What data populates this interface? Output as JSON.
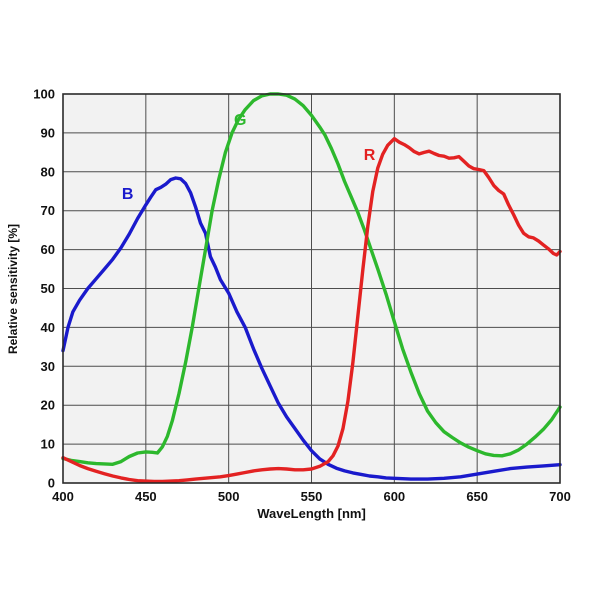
{
  "chart_data": {
    "type": "line",
    "title": "",
    "xlabel": "WaveLength [nm]",
    "ylabel": "Relative sensitivity [%]",
    "xlim": [
      400,
      700
    ],
    "ylim": [
      0,
      100
    ],
    "x_ticks": [
      400,
      450,
      500,
      550,
      600,
      650,
      700
    ],
    "y_ticks": [
      0,
      10,
      20,
      30,
      40,
      50,
      60,
      70,
      80,
      90,
      100
    ],
    "grid": true,
    "legend_position": "inline-curve-labels",
    "plot_background": "#f2f2f2",
    "grid_color": "#4d4d4d",
    "border_color": "#2a2a2a",
    "series": [
      {
        "name": "blue-channel",
        "label": "B",
        "color": "#1a1acc",
        "label_x": 439,
        "label_y": 73,
        "points": [
          [
            400,
            34
          ],
          [
            403,
            40
          ],
          [
            406,
            44
          ],
          [
            410,
            47
          ],
          [
            415,
            50
          ],
          [
            420,
            52.5
          ],
          [
            425,
            55
          ],
          [
            430,
            57.5
          ],
          [
            435,
            60.5
          ],
          [
            440,
            64
          ],
          [
            445,
            68
          ],
          [
            450,
            71.5
          ],
          [
            453,
            73.5
          ],
          [
            456,
            75.4
          ],
          [
            459,
            76
          ],
          [
            462,
            76.8
          ],
          [
            465,
            78
          ],
          [
            468,
            78.4
          ],
          [
            471,
            78.2
          ],
          [
            474,
            77
          ],
          [
            477,
            74.6
          ],
          [
            480,
            71
          ],
          [
            483,
            66.8
          ],
          [
            486,
            64.2
          ],
          [
            489,
            58.2
          ],
          [
            492,
            55.5
          ],
          [
            495,
            52.3
          ],
          [
            500,
            48.8
          ],
          [
            505,
            44
          ],
          [
            510,
            40
          ],
          [
            515,
            34.5
          ],
          [
            520,
            29.5
          ],
          [
            525,
            25
          ],
          [
            530,
            20.5
          ],
          [
            535,
            17
          ],
          [
            540,
            14
          ],
          [
            545,
            11
          ],
          [
            550,
            8.3
          ],
          [
            555,
            6.2
          ],
          [
            560,
            4.8
          ],
          [
            565,
            3.8
          ],
          [
            570,
            3.1
          ],
          [
            575,
            2.6
          ],
          [
            580,
            2.2
          ],
          [
            585,
            1.8
          ],
          [
            590,
            1.6
          ],
          [
            595,
            1.3
          ],
          [
            600,
            1.2
          ],
          [
            610,
            1.0
          ],
          [
            620,
            1.0
          ],
          [
            630,
            1.2
          ],
          [
            640,
            1.6
          ],
          [
            650,
            2.3
          ],
          [
            660,
            3.0
          ],
          [
            670,
            3.7
          ],
          [
            680,
            4.1
          ],
          [
            690,
            4.4
          ],
          [
            700,
            4.7
          ]
        ]
      },
      {
        "name": "green-channel",
        "label": "G",
        "color": "#2db82d",
        "label_x": 507,
        "label_y": 92,
        "points": [
          [
            400,
            6.3
          ],
          [
            405,
            5.8
          ],
          [
            410,
            5.5
          ],
          [
            415,
            5.2
          ],
          [
            420,
            5.0
          ],
          [
            425,
            4.9
          ],
          [
            430,
            4.8
          ],
          [
            435,
            5.5
          ],
          [
            440,
            6.8
          ],
          [
            445,
            7.7
          ],
          [
            450,
            8.0
          ],
          [
            454,
            7.9
          ],
          [
            457,
            7.7
          ],
          [
            460,
            9.3
          ],
          [
            463,
            12
          ],
          [
            466,
            16
          ],
          [
            470,
            23
          ],
          [
            474,
            31
          ],
          [
            478,
            40
          ],
          [
            482,
            50
          ],
          [
            486,
            60
          ],
          [
            490,
            70
          ],
          [
            494,
            78
          ],
          [
            498,
            85
          ],
          [
            502,
            90
          ],
          [
            506,
            93.5
          ],
          [
            510,
            96
          ],
          [
            515,
            98.3
          ],
          [
            520,
            99.5
          ],
          [
            525,
            100
          ],
          [
            530,
            100
          ],
          [
            535,
            99.7
          ],
          [
            540,
            98.7
          ],
          [
            545,
            97
          ],
          [
            550,
            94.5
          ],
          [
            555,
            91.5
          ],
          [
            558,
            89.5
          ],
          [
            562,
            86
          ],
          [
            566,
            82
          ],
          [
            570,
            77.5
          ],
          [
            574,
            73.5
          ],
          [
            578,
            69.5
          ],
          [
            582,
            65
          ],
          [
            586,
            60
          ],
          [
            590,
            55
          ],
          [
            595,
            48.5
          ],
          [
            600,
            41.5
          ],
          [
            605,
            34.5
          ],
          [
            610,
            28.5
          ],
          [
            615,
            23
          ],
          [
            620,
            18.5
          ],
          [
            625,
            15.5
          ],
          [
            630,
            13.2
          ],
          [
            635,
            11.7
          ],
          [
            640,
            10.3
          ],
          [
            645,
            9.2
          ],
          [
            650,
            8.3
          ],
          [
            655,
            7.5
          ],
          [
            660,
            7.1
          ],
          [
            665,
            7.0
          ],
          [
            670,
            7.5
          ],
          [
            675,
            8.5
          ],
          [
            680,
            10
          ],
          [
            685,
            11.8
          ],
          [
            690,
            13.8
          ],
          [
            695,
            16.3
          ],
          [
            700,
            19.5
          ]
        ]
      },
      {
        "name": "red-channel",
        "label": "R",
        "color": "#e32222",
        "label_x": 585,
        "label_y": 83,
        "points": [
          [
            400,
            6.5
          ],
          [
            405,
            5.5
          ],
          [
            410,
            4.5
          ],
          [
            415,
            3.7
          ],
          [
            420,
            3.0
          ],
          [
            425,
            2.4
          ],
          [
            430,
            1.8
          ],
          [
            435,
            1.3
          ],
          [
            440,
            0.9
          ],
          [
            445,
            0.6
          ],
          [
            450,
            0.5
          ],
          [
            455,
            0.4
          ],
          [
            460,
            0.4
          ],
          [
            465,
            0.5
          ],
          [
            470,
            0.6
          ],
          [
            475,
            0.8
          ],
          [
            480,
            1.0
          ],
          [
            485,
            1.2
          ],
          [
            490,
            1.4
          ],
          [
            495,
            1.6
          ],
          [
            500,
            1.9
          ],
          [
            505,
            2.3
          ],
          [
            510,
            2.7
          ],
          [
            515,
            3.1
          ],
          [
            520,
            3.4
          ],
          [
            525,
            3.6
          ],
          [
            530,
            3.7
          ],
          [
            535,
            3.6
          ],
          [
            540,
            3.4
          ],
          [
            545,
            3.4
          ],
          [
            550,
            3.6
          ],
          [
            555,
            4.3
          ],
          [
            560,
            5.5
          ],
          [
            563,
            7
          ],
          [
            566,
            9.5
          ],
          [
            569,
            14
          ],
          [
            572,
            21
          ],
          [
            575,
            31
          ],
          [
            578,
            43
          ],
          [
            581,
            55
          ],
          [
            584,
            66
          ],
          [
            587,
            75
          ],
          [
            590,
            81
          ],
          [
            593,
            84.5
          ],
          [
            596,
            86.8
          ],
          [
            600,
            88.5
          ],
          [
            603,
            87.6
          ],
          [
            606,
            87.0
          ],
          [
            609,
            86.2
          ],
          [
            612,
            85.2
          ],
          [
            615,
            84.6
          ],
          [
            618,
            85.0
          ],
          [
            621,
            85.3
          ],
          [
            624,
            84.7
          ],
          [
            627,
            84.2
          ],
          [
            630,
            84.0
          ],
          [
            633,
            83.5
          ],
          [
            636,
            83.6
          ],
          [
            639,
            83.9
          ],
          [
            642,
            82.7
          ],
          [
            645,
            81.5
          ],
          [
            648,
            80.8
          ],
          [
            651,
            80.6
          ],
          [
            654,
            80.3
          ],
          [
            657,
            78.5
          ],
          [
            660,
            76.5
          ],
          [
            663,
            75.2
          ],
          [
            666,
            74.3
          ],
          [
            669,
            71.5
          ],
          [
            672,
            69
          ],
          [
            675,
            66.3
          ],
          [
            678,
            64.2
          ],
          [
            681,
            63.3
          ],
          [
            684,
            63.0
          ],
          [
            687,
            62.2
          ],
          [
            690,
            61.2
          ],
          [
            693,
            60.2
          ],
          [
            696,
            59.0
          ],
          [
            698,
            58.6
          ],
          [
            700,
            59.5
          ]
        ]
      }
    ]
  }
}
